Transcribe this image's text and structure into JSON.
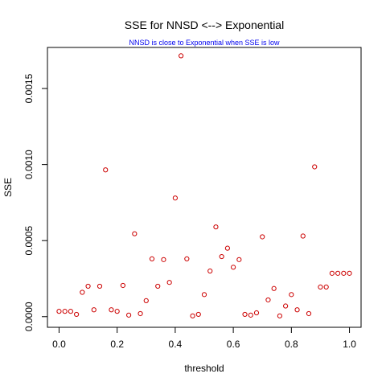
{
  "chart_data": {
    "type": "scatter",
    "title": "SSE for NNSD <--> Exponential",
    "subtitle": "NNSD is close to Exponential when SSE is low",
    "xlabel": "threshold",
    "ylabel": "SSE",
    "xlim": [
      -0.04,
      1.04
    ],
    "ylim": [
      -7e-05,
      0.00177
    ],
    "x_ticks": [
      0.0,
      0.2,
      0.4,
      0.6,
      0.8,
      1.0
    ],
    "x_tick_labels": [
      "0.0",
      "0.2",
      "0.4",
      "0.6",
      "0.8",
      "1.0"
    ],
    "y_ticks": [
      0.0,
      0.0005,
      0.001,
      0.0015
    ],
    "y_tick_labels": [
      "0.0000",
      "0.0005",
      "0.0010",
      "0.0015"
    ],
    "grid": false,
    "point_shape": "open-circle",
    "colors": {
      "points": "#cc0000",
      "subtitle": "#0000ee",
      "frame": "#000000"
    },
    "series": [
      {
        "x": [
          0.0,
          0.02,
          0.04,
          0.06,
          0.08,
          0.1,
          0.12,
          0.14,
          0.16,
          0.18,
          0.2,
          0.22,
          0.24,
          0.26,
          0.28,
          0.3,
          0.32,
          0.34,
          0.36,
          0.38,
          0.4,
          0.42,
          0.44,
          0.46,
          0.48,
          0.5,
          0.52,
          0.54,
          0.56,
          0.58,
          0.6,
          0.62,
          0.64,
          0.66,
          0.68,
          0.7,
          0.72,
          0.74,
          0.76,
          0.78,
          0.8,
          0.82,
          0.84,
          0.86,
          0.88,
          0.9,
          0.92,
          0.94,
          0.96,
          0.98,
          1.0
        ],
        "y": [
          3.5e-05,
          3.5e-05,
          3.5e-05,
          1.5e-05,
          0.00016,
          0.0002,
          4.5e-05,
          0.0002,
          0.000965,
          4.5e-05,
          3.5e-05,
          0.000205,
          1e-05,
          0.000545,
          2e-05,
          0.000105,
          0.00038,
          0.0002,
          0.000375,
          0.000225,
          0.00078,
          0.001715,
          0.00038,
          5e-06,
          1.5e-05,
          0.000145,
          0.0003,
          0.00059,
          0.000395,
          0.00045,
          0.000325,
          0.000375,
          1.5e-05,
          1e-05,
          2.5e-05,
          0.000525,
          0.00011,
          0.000185,
          5e-06,
          7e-05,
          0.000145,
          4.5e-05,
          0.00053,
          2e-05,
          0.000985,
          0.000195,
          0.000195,
          0.000285,
          0.000285,
          0.000285,
          0.000285
        ]
      }
    ]
  }
}
